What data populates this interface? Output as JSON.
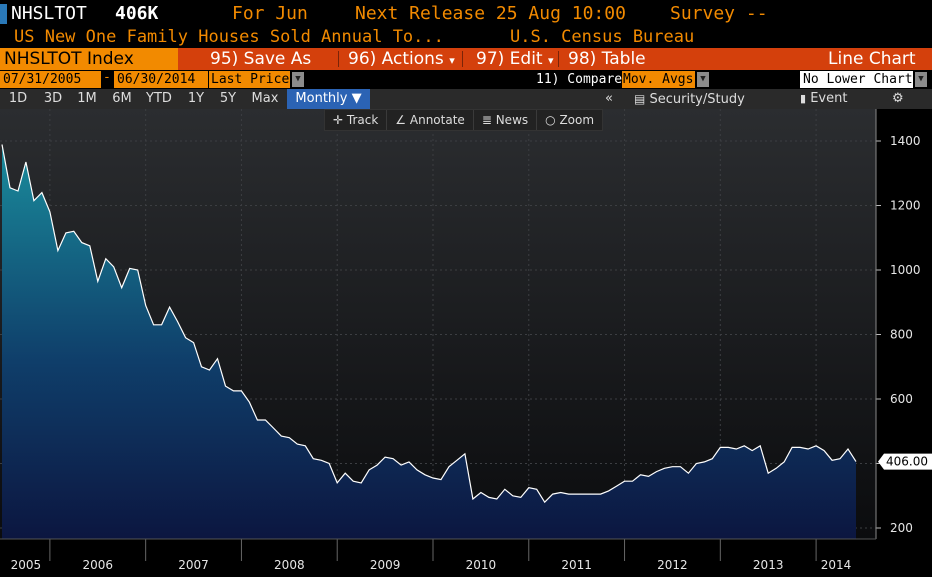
{
  "header": {
    "ticker": "NHSLTOT",
    "last_value": "406K",
    "for_label": "For Jun",
    "next_release": "Next Release 25 Aug 10:00",
    "survey": "Survey --",
    "description": "US New One Family Houses Sold Annual To...",
    "source": "U.S. Census Bureau"
  },
  "toolbar": {
    "title": "NHSLTOT Index",
    "save_as": "95) Save As",
    "actions": "96) Actions",
    "edit": "97) Edit",
    "table": "98) Table",
    "chart_type": "Line Chart"
  },
  "dates": {
    "start": "07/31/2005",
    "end": "06/30/2014",
    "price_field": "Last Price",
    "compare_label": "11) Compare",
    "compare_value": "Mov. Avgs",
    "lower_chart": "No Lower Chart"
  },
  "periods": [
    "1D",
    "3D",
    "1M",
    "6M",
    "YTD",
    "1Y",
    "5Y",
    "Max"
  ],
  "frequency": "Monthly ▼",
  "right_tools": {
    "collapse": "«",
    "security_study": "Security/Study",
    "event": "Event",
    "settings": "⚙"
  },
  "chart_tools": [
    "Track",
    "Annotate",
    "News",
    "Zoom"
  ],
  "colors": {
    "background": "#000000",
    "toolbar": "#d4400c",
    "accent_orange": "#f28a00",
    "line": "#ffffff",
    "fill_top": "#1a8c9c",
    "fill_bottom": "#0c1640",
    "selected": "#2b63b4"
  },
  "chart_data": {
    "type": "area",
    "title": "",
    "xlabel": "",
    "ylabel": "",
    "x_tick_labels": [
      "2005",
      "2006",
      "2007",
      "2008",
      "2009",
      "2010",
      "2011",
      "2012",
      "2013",
      "2014"
    ],
    "y_ticks": [
      200,
      400,
      600,
      800,
      1000,
      1200,
      1400
    ],
    "ylim": [
      180,
      1460
    ],
    "last_label": "406.00",
    "series": [
      {
        "values": [
          1389,
          1255,
          1245,
          1335,
          1215,
          1240,
          1180,
          1060,
          1115,
          1120,
          1085,
          1075,
          965,
          1035,
          1010,
          945,
          1005,
          1000,
          890,
          830,
          830,
          885,
          840,
          790,
          775,
          700,
          690,
          725,
          640,
          625,
          625,
          590,
          535,
          535,
          510,
          485,
          480,
          460,
          455,
          415,
          410,
          400,
          340,
          370,
          345,
          340,
          380,
          395,
          420,
          415,
          395,
          405,
          380,
          365,
          355,
          350,
          390,
          410,
          430,
          290,
          310,
          295,
          290,
          320,
          300,
          295,
          325,
          320,
          280,
          305,
          310,
          305,
          305,
          305,
          305,
          305,
          315,
          330,
          345,
          345,
          365,
          360,
          375,
          385,
          390,
          390,
          370,
          400,
          405,
          415,
          450,
          450,
          445,
          455,
          440,
          455,
          370,
          385,
          405,
          450,
          450,
          445,
          455,
          440,
          410,
          415,
          445,
          406
        ]
      }
    ]
  }
}
